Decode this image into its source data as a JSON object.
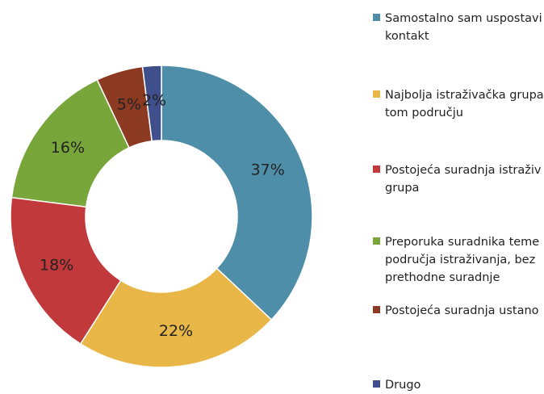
{
  "chart_data": {
    "type": "donut",
    "categories": [
      "Samostalno sam uspostavi\nkontakt",
      "Najbolja istraživačka grupa\ntom području",
      "Postojeća suradnja istraživ\ngrupa",
      "Preporuka suradnika teme\npodručja istraživanja, bez\nprethodne suradnje",
      "Postojeća suradnja ustano",
      "Drugo"
    ],
    "values": [
      37,
      22,
      18,
      16,
      5,
      2
    ],
    "value_labels": [
      "37%",
      "22%",
      "18%",
      "16%",
      "5%",
      "2%"
    ],
    "colors": [
      "#4f8ea9",
      "#e9b747",
      "#c1393b",
      "#79a63b",
      "#8c3b22",
      "#3f4f8c"
    ],
    "legend": "right"
  }
}
